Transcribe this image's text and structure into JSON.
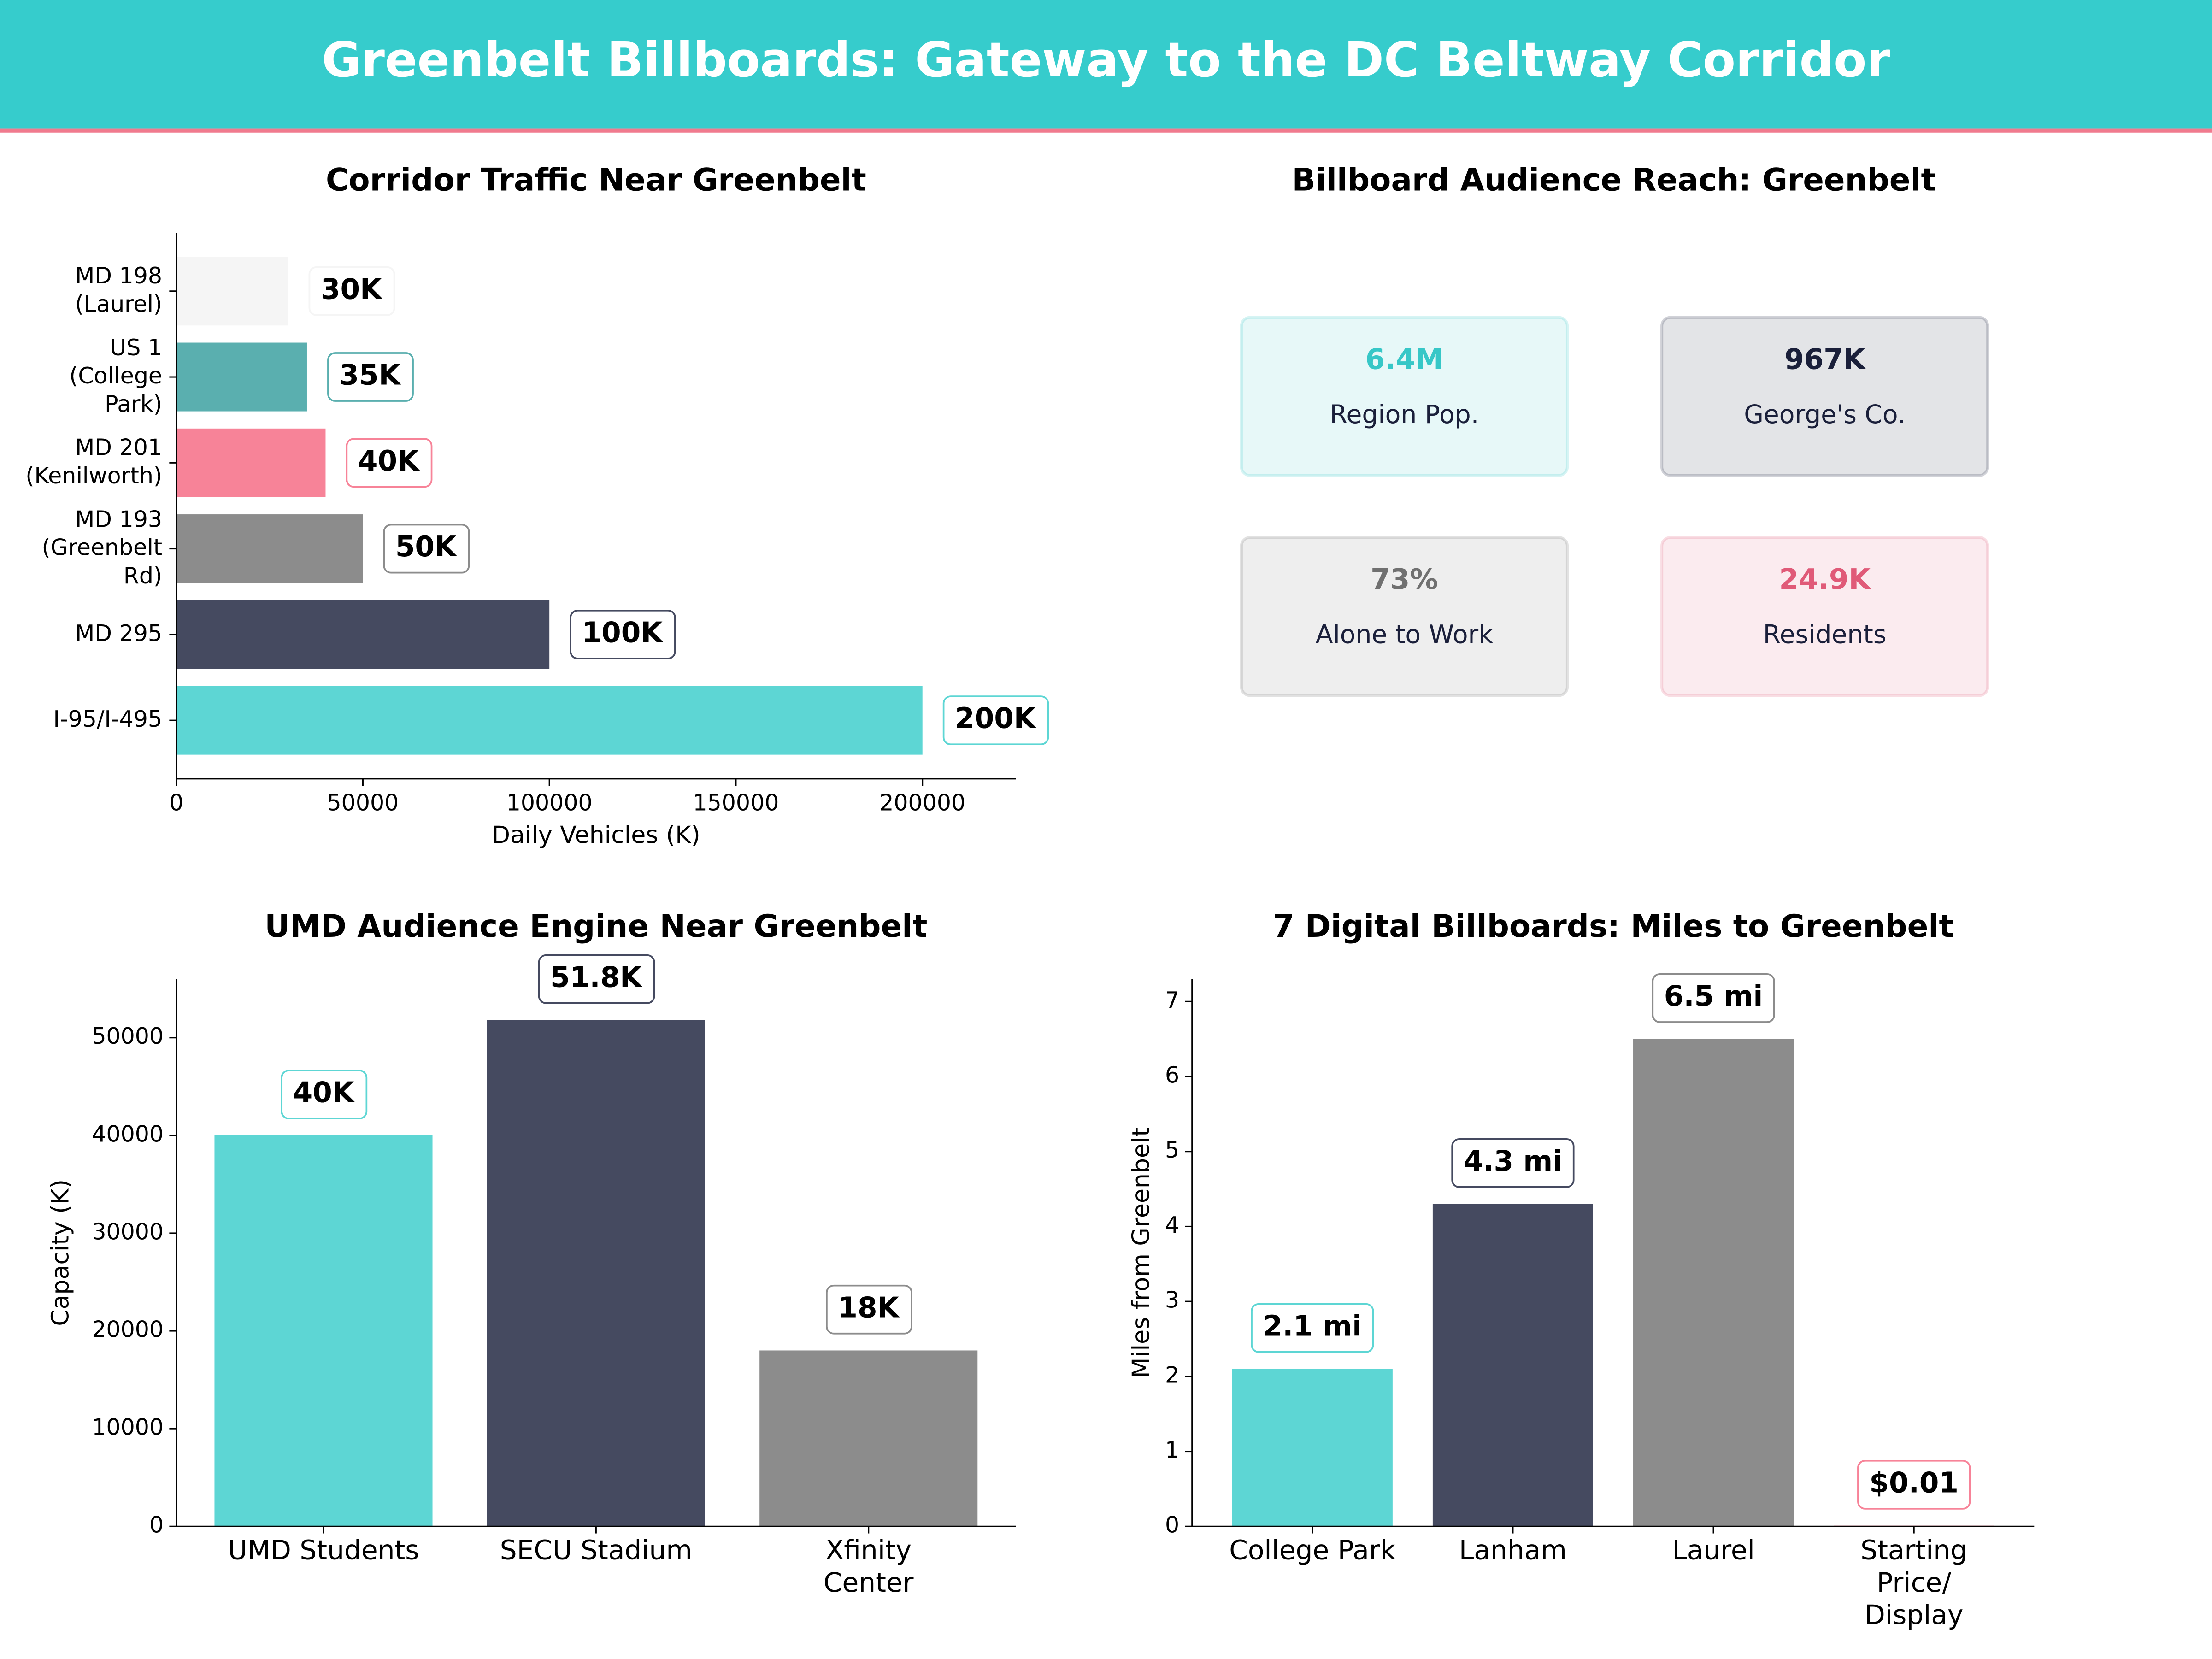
{
  "header": {
    "title": "Greenbelt Billboards: Gateway to the DC Beltway Corridor"
  },
  "chart_data": [
    {
      "type": "barh",
      "title": "Corridor Traffic Near Greenbelt",
      "xlabel": "Daily Vehicles (K)",
      "categories": [
        "MD 198\n(Laurel)",
        "US 1\n(College\nPark)",
        "MD 201\n(Kenilworth)",
        "MD 193\n(Greenbelt\nRd)",
        "MD 295",
        "I-95/I-495"
      ],
      "values": [
        30000,
        35000,
        40000,
        50000,
        100000,
        200000
      ],
      "value_labels": [
        "30K",
        "35K",
        "40K",
        "50K",
        "100K",
        "200K"
      ],
      "colors": [
        "#f5f5f5",
        "#5aafaf",
        "#f78398",
        "#8c8c8c",
        "#454a60",
        "#5dd6d4"
      ],
      "xlim": [
        0,
        225000
      ],
      "xticks": [
        0,
        50000,
        100000,
        150000,
        200000
      ]
    },
    {
      "type": "kpi",
      "title": "Billboard Audience Reach: Greenbelt",
      "categories": [
        "Region Pop.",
        "George's Co.",
        "Alone to Work",
        "Residents"
      ],
      "values": [
        6400000,
        967000,
        73,
        24900
      ],
      "value_labels": [
        "6.4M",
        "967K",
        "73%",
        "24.9K"
      ],
      "colors": [
        "#37c7c7",
        "#1a1f3a",
        "#707070",
        "#e05a78"
      ]
    },
    {
      "type": "bar",
      "title": "UMD Audience Engine Near Greenbelt",
      "ylabel": "Capacity (K)",
      "categories": [
        "UMD Students",
        "SECU Stadium",
        "Xfinity\nCenter"
      ],
      "values": [
        40000,
        51800,
        18000
      ],
      "value_labels": [
        "40K",
        "51.8K",
        "18K"
      ],
      "colors": [
        "#5dd6d4",
        "#454a60",
        "#8c8c8c"
      ],
      "ylim": [
        0,
        56000
      ],
      "yticks": [
        0,
        10000,
        20000,
        30000,
        40000,
        50000
      ]
    },
    {
      "type": "bar",
      "title": "7 Digital Billboards: Miles to Greenbelt",
      "ylabel": "Miles from Greenbelt",
      "categories": [
        "College Park",
        "Lanham",
        "Laurel",
        "Starting\nPrice/\nDisplay"
      ],
      "values": [
        2.1,
        4.3,
        6.5,
        0.01
      ],
      "value_labels": [
        "2.1 mi",
        "4.3 mi",
        "6.5 mi",
        "$0.01"
      ],
      "colors": [
        "#5dd6d4",
        "#454a60",
        "#8c8c8c",
        "#f78398"
      ],
      "ylim": [
        0,
        7.3
      ],
      "yticks": [
        0,
        1,
        2,
        3,
        4,
        5,
        6,
        7
      ]
    }
  ]
}
